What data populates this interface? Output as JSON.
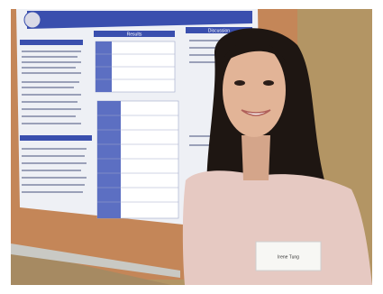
{
  "poster": {
    "headings": [
      "Results",
      "Discussion"
    ]
  },
  "badge": {
    "name": "Irene Tung"
  }
}
